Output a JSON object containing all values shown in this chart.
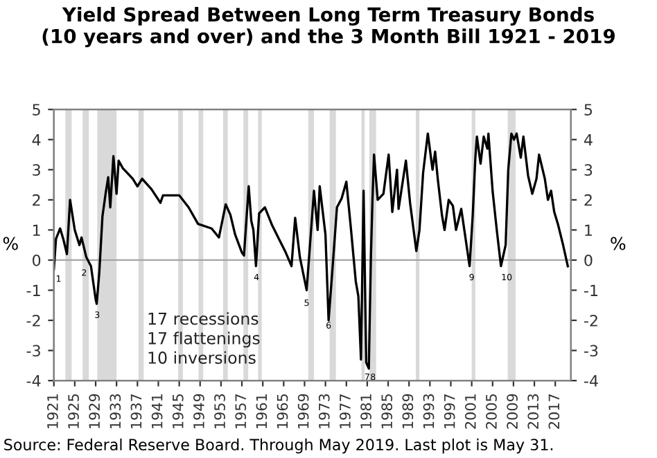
{
  "chart_data": {
    "type": "line",
    "title": "Yield Spread Between Long Term Treasury Bonds\n(10 years and over) and the 3 Month Bill 1921 - 2019",
    "ylabel": "%",
    "y2label": "%",
    "x": [
      1921.0,
      1921.4,
      1922.2,
      1922.8,
      1923.5,
      1924.1,
      1925.0,
      1925.9,
      1926.3,
      1927.2,
      1928.1,
      1929.0,
      1929.2,
      1929.7,
      1930.3,
      1930.9,
      1931.4,
      1931.8,
      1932.4,
      1933.0,
      1933.4,
      1934.2,
      1936.1,
      1937.0,
      1937.9,
      1939.7,
      1941.4,
      1941.9,
      1945.0,
      1946.8,
      1948.6,
      1951.2,
      1952.6,
      1953.9,
      1954.8,
      1955.7,
      1957.0,
      1957.4,
      1958.3,
      1958.8,
      1959.2,
      1959.7,
      1960.3,
      1961.4,
      1962.8,
      1964.1,
      1965.4,
      1966.5,
      1967.2,
      1968.1,
      1969.4,
      1970.8,
      1971.5,
      1971.9,
      1973.0,
      1973.6,
      1974.3,
      1975.2,
      1976.1,
      1977.0,
      1977.9,
      1978.8,
      1979.3,
      1979.8,
      1980.3,
      1980.8,
      1981.3,
      1981.7,
      1982.0,
      1982.3,
      1983.0,
      1984.1,
      1985.1,
      1985.8,
      1986.7,
      1987.0,
      1988.4,
      1989.2,
      1990.4,
      1991.0,
      1991.7,
      1992.6,
      1993.5,
      1994.0,
      1994.5,
      1995.3,
      1995.8,
      1996.6,
      1997.4,
      1998.0,
      1999.0,
      2000.6,
      2001.2,
      2001.7,
      2002.0,
      2002.7,
      2003.3,
      2004.0,
      2004.2,
      2005.0,
      2005.8,
      2006.6,
      2007.5,
      2008.0,
      2008.6,
      2009.1,
      2009.6,
      2010.4,
      2010.9,
      2011.8,
      2012.6,
      2013.4,
      2013.9,
      2015.0,
      2015.6,
      2016.2,
      2016.8,
      2017.5,
      2018.5,
      2019.4
    ],
    "series": [
      {
        "color": "#000000",
        "values": [
          -0.3,
          0.7,
          1.05,
          0.7,
          0.2,
          2.0,
          1.0,
          0.5,
          0.75,
          0.1,
          -0.2,
          -1.3,
          -1.45,
          -0.4,
          1.45,
          2.2,
          2.75,
          1.75,
          3.45,
          2.2,
          3.3,
          3.05,
          2.7,
          2.45,
          2.7,
          2.35,
          1.9,
          2.15,
          2.15,
          1.75,
          1.2,
          1.05,
          0.75,
          1.85,
          1.5,
          0.85,
          0.25,
          0.15,
          2.45,
          1.3,
          1.0,
          -0.2,
          1.55,
          1.75,
          1.15,
          0.7,
          0.25,
          -0.2,
          1.4,
          0.1,
          -1.0,
          2.3,
          1.0,
          2.45,
          0.85,
          -2.0,
          -0.4,
          1.75,
          2.05,
          2.6,
          1.0,
          -0.7,
          -1.2,
          -3.3,
          2.3,
          -3.4,
          -3.6,
          0.1,
          2.0,
          3.5,
          2.0,
          2.2,
          3.5,
          1.6,
          3.0,
          1.7,
          3.3,
          1.9,
          0.3,
          1.0,
          2.9,
          4.2,
          3.0,
          3.6,
          2.7,
          1.5,
          1.0,
          2.0,
          1.8,
          1.0,
          1.7,
          -0.2,
          1.5,
          3.4,
          4.1,
          3.2,
          4.1,
          3.7,
          4.2,
          2.3,
          1.0,
          -0.2,
          0.5,
          3.0,
          4.2,
          4.0,
          4.2,
          3.4,
          4.1,
          2.8,
          2.2,
          2.7,
          3.5,
          2.7,
          2.0,
          2.3,
          1.6,
          1.2,
          0.5,
          -0.2
        ]
      }
    ],
    "xlim": [
      1921,
      2020
    ],
    "xticks": [
      1921,
      1925,
      1929,
      1933,
      1937,
      1941,
      1945,
      1949,
      1953,
      1957,
      1961,
      1965,
      1969,
      1973,
      1977,
      1981,
      1985,
      1989,
      1993,
      1997,
      2001,
      2005,
      2009,
      2013,
      2017
    ],
    "ylim": [
      -4,
      5
    ],
    "yticks": [
      -4,
      -3,
      -2,
      -1,
      0,
      1,
      2,
      3,
      4,
      5
    ],
    "y2lim": [
      -4,
      5
    ],
    "y2ticks": [
      -4,
      -3,
      -2,
      -1,
      0,
      1,
      2,
      3,
      4,
      5
    ],
    "ref_lines": [
      {
        "axis": "y",
        "value": 0,
        "color": "#a6a6a6"
      }
    ],
    "bands": [
      {
        "axis": "x",
        "from": 1923.2,
        "to": 1924.4,
        "color": "#d9d9d9"
      },
      {
        "axis": "x",
        "from": 1926.5,
        "to": 1927.7,
        "color": "#d9d9d9"
      },
      {
        "axis": "x",
        "from": 1929.3,
        "to": 1933.0,
        "color": "#d9d9d9"
      },
      {
        "axis": "x",
        "from": 1937.2,
        "to": 1938.2,
        "color": "#d9d9d9"
      },
      {
        "axis": "x",
        "from": 1944.8,
        "to": 1945.7,
        "color": "#d9d9d9"
      },
      {
        "axis": "x",
        "from": 1948.7,
        "to": 1949.6,
        "color": "#d9d9d9"
      },
      {
        "axis": "x",
        "from": 1953.4,
        "to": 1954.3,
        "color": "#d9d9d9"
      },
      {
        "axis": "x",
        "from": 1957.3,
        "to": 1958.2,
        "color": "#d9d9d9"
      },
      {
        "axis": "x",
        "from": 1960.1,
        "to": 1960.8,
        "color": "#d9d9d9"
      },
      {
        "axis": "x",
        "from": 1969.7,
        "to": 1970.8,
        "color": "#d9d9d9"
      },
      {
        "axis": "x",
        "from": 1973.8,
        "to": 1975.0,
        "color": "#d9d9d9"
      },
      {
        "axis": "x",
        "from": 1979.9,
        "to": 1980.5,
        "color": "#d9d9d9"
      },
      {
        "axis": "x",
        "from": 1981.4,
        "to": 1982.7,
        "color": "#d9d9d9"
      },
      {
        "axis": "x",
        "from": 1990.3,
        "to": 1991.0,
        "color": "#d9d9d9"
      },
      {
        "axis": "x",
        "from": 2001.0,
        "to": 2001.7,
        "color": "#d9d9d9"
      },
      {
        "axis": "x",
        "from": 2007.9,
        "to": 2009.4,
        "color": "#d9d9d9"
      }
    ],
    "annotations": [
      {
        "text": "1",
        "x": 1921.9,
        "y": -0.5
      },
      {
        "text": "2",
        "x": 1926.8,
        "y": -0.3
      },
      {
        "text": "3",
        "x": 1929.3,
        "y": -1.7
      },
      {
        "text": "4",
        "x": 1959.8,
        "y": -0.45
      },
      {
        "text": "5",
        "x": 1969.4,
        "y": -1.3
      },
      {
        "text": "6",
        "x": 1973.6,
        "y": -2.05
      },
      {
        "text": "7",
        "x": 1981.0,
        "y": -3.76
      },
      {
        "text": "8",
        "x": 1982.1,
        "y": -3.76
      },
      {
        "text": "9",
        "x": 2001.0,
        "y": -0.45
      },
      {
        "text": "10",
        "x": 2007.7,
        "y": -0.45
      },
      "17 recessions\n17 flattenings\n10 inversions",
      "Source: Federal Reserve Board. Through May 2019. Last plot is May 31."
    ],
    "grid": false,
    "legend": false,
    "line_style": "solid",
    "marker": "none"
  }
}
